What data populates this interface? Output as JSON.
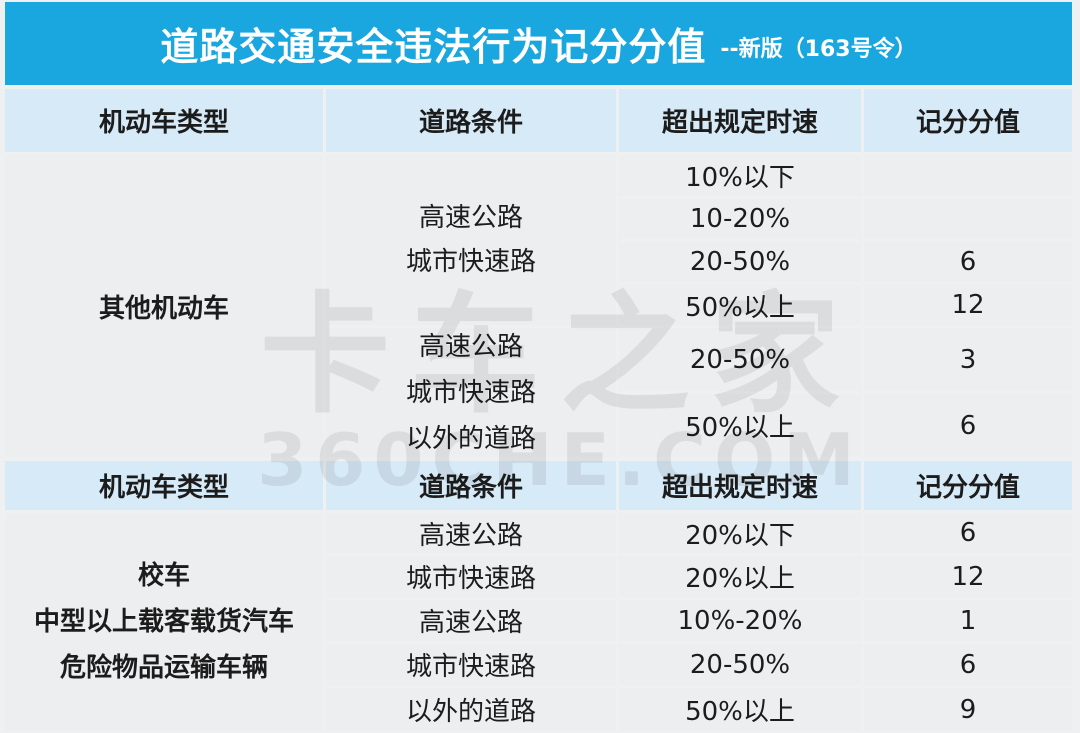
{
  "title": {
    "main": "道路交通安全违法行为记分分值",
    "sub": "--新版（163号令）"
  },
  "headers": [
    "机动车类型",
    "道路条件",
    "超出规定时速",
    "记分分值"
  ],
  "section1": {
    "vehicle": "其他机动车",
    "road_a": [
      "高速公路",
      "城市快速路"
    ],
    "road_b": [
      "高速公路",
      "城市快速路",
      "以外的道路"
    ],
    "speeds": [
      "10%以下",
      "10-20%",
      "20-50%",
      "50%以上",
      "20-50%",
      "50%以上"
    ],
    "points": [
      "",
      "",
      "6",
      "12",
      "3",
      "6"
    ]
  },
  "section2": {
    "vehicle": [
      "校车",
      "中型以上载客载货汽车",
      "危险物品运输车辆"
    ],
    "roads": [
      "高速公路",
      "城市快速路",
      "高速公路",
      "城市快速路",
      "以外的道路"
    ],
    "speeds": [
      "20%以下",
      "20%以上",
      "10%-20%",
      "20-50%",
      "50%以上"
    ],
    "points": [
      "6",
      "12",
      "1",
      "6",
      "9"
    ]
  },
  "watermark": {
    "big": "卡车之家",
    "small": "360CHE.COM"
  },
  "colors": {
    "title_bg": "#1aa6df",
    "header_bg": "#d7eaf7",
    "body_bg": "#eceeef"
  }
}
